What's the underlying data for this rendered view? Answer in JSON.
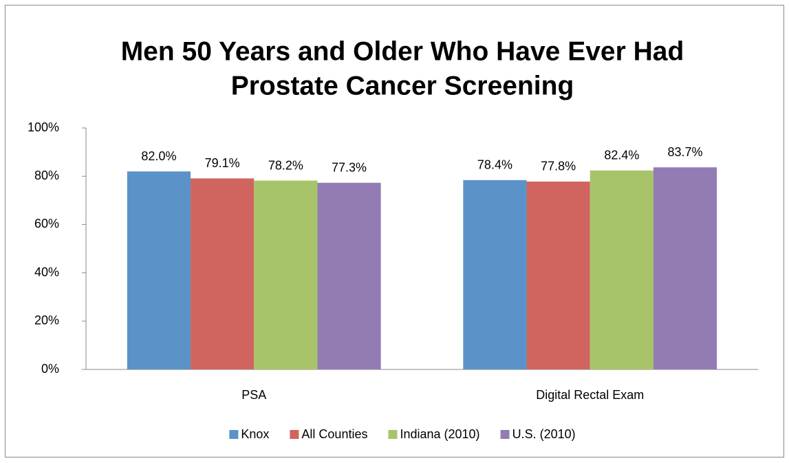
{
  "chart_data": {
    "type": "bar",
    "title": [
      "Men 50 Years and Older Who Have Ever Had",
      "Prostate Cancer Screening"
    ],
    "categories": [
      "PSA",
      "Digital Rectal Exam"
    ],
    "series": [
      {
        "name": "Knox",
        "color": "#5b93c9",
        "values": [
          82.0,
          78.4
        ],
        "value_labels": [
          "82.0%",
          "78.4%"
        ]
      },
      {
        "name": "All Counties",
        "color": "#cf655e",
        "values": [
          79.1,
          77.8
        ],
        "value_labels": [
          "79.1%",
          "77.8%"
        ]
      },
      {
        "name": "Indiana (2010)",
        "color": "#a8c46b",
        "values": [
          78.2,
          82.4
        ],
        "value_labels": [
          "78.2%",
          "82.4%"
        ]
      },
      {
        "name": "U.S. (2010)",
        "color": "#937cb4",
        "values": [
          77.3,
          83.7
        ],
        "value_labels": [
          "77.3%",
          "83.7%"
        ]
      }
    ],
    "ylim": [
      0,
      100
    ],
    "yticks": [
      {
        "value": 0,
        "label": "0%"
      },
      {
        "value": 20,
        "label": "20%"
      },
      {
        "value": 40,
        "label": "40%"
      },
      {
        "value": 60,
        "label": "60%"
      },
      {
        "value": 80,
        "label": "80%"
      },
      {
        "value": 100,
        "label": "100%"
      }
    ],
    "grid": false,
    "legend": "bottom"
  }
}
